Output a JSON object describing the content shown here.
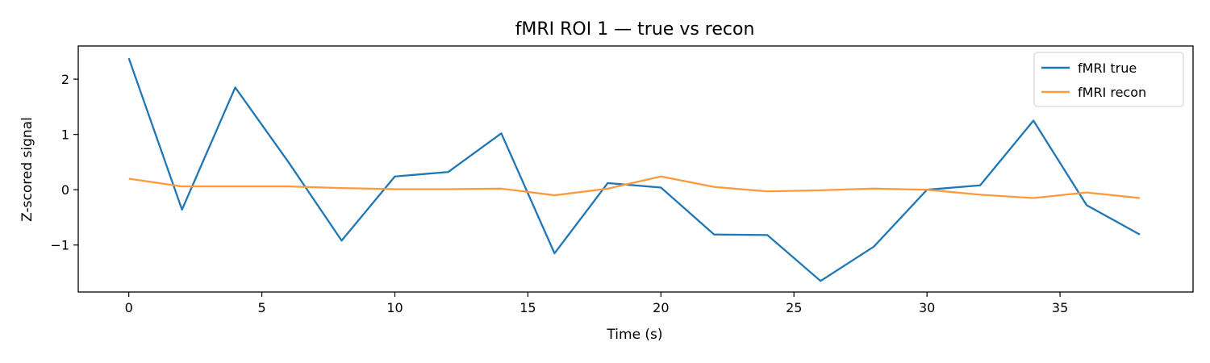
{
  "chart_data": {
    "type": "line",
    "title": "fMRI ROI 1 — true vs recon",
    "xlabel": "Time (s)",
    "ylabel": "Z-scored signal",
    "xlim": [
      -1.9,
      40
    ],
    "ylim": [
      -1.85,
      2.6
    ],
    "x_ticks": [
      0,
      5,
      10,
      15,
      20,
      25,
      30,
      35
    ],
    "y_ticks": [
      -1,
      0,
      1,
      2
    ],
    "grid": false,
    "legend_position": "top-right",
    "x": [
      0,
      2,
      4,
      6,
      8,
      10,
      12,
      14,
      16,
      18,
      20,
      22,
      24,
      26,
      28,
      30,
      32,
      34,
      36,
      38
    ],
    "series": [
      {
        "name": "fMRI true",
        "color": "#1f77b4",
        "values": [
          2.38,
          -0.36,
          1.85,
          0.5,
          -0.92,
          0.24,
          0.32,
          1.02,
          -1.15,
          0.12,
          0.04,
          -0.81,
          -0.82,
          -1.65,
          -1.03,
          0.0,
          0.08,
          1.25,
          -0.28,
          -0.81
        ]
      },
      {
        "name": "fMRI recon",
        "color": "#ff9a3c",
        "values": [
          0.2,
          0.06,
          0.06,
          0.06,
          0.03,
          0.01,
          0.01,
          0.02,
          -0.1,
          0.02,
          0.24,
          0.05,
          -0.03,
          -0.01,
          0.02,
          0.0,
          -0.09,
          -0.15,
          -0.05,
          -0.15
        ]
      }
    ]
  }
}
